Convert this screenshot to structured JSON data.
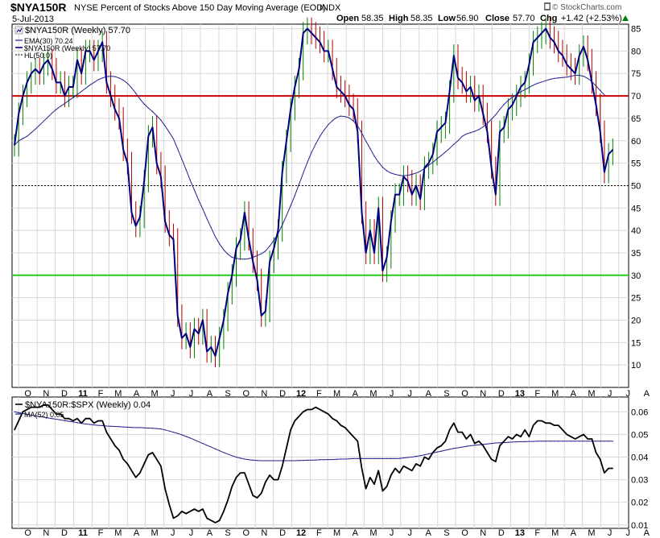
{
  "header": {
    "symbol": "$NYA150R",
    "title": "NYSE Percent of Stocks Above 150 Day Moving Average (EOD)",
    "exchange": "INDX",
    "date": "5-Jul-2013",
    "open_label": "Open",
    "open": "58.35",
    "high_label": "High",
    "high": "58.35",
    "low_label": "Low",
    "low": "56.90",
    "close_label": "Close",
    "close": "57.70",
    "chg_label": "Chg",
    "chg": "+1.42 (+2.53%)",
    "watermark": "© StockCharts.com"
  },
  "colors": {
    "price": "#000080",
    "ema": "#22228c",
    "up_bar": "#008000",
    "down_bar": "#b00000",
    "line70": "#cc0000",
    "line30": "#22cc22",
    "ratio": "#000000",
    "ma52": "#22228c",
    "chg_up": "#008000",
    "grid": "#d8d8d8"
  },
  "chart_data": [
    {
      "type": "line",
      "title": "$NYA150R NYSE Percent of Stocks Above 150 Day Moving Average (EOD)",
      "legend": [
        "$NYA150R (Weekly) 57.70",
        "EMA(30) 70.24",
        "$NYA150R (Weekly) 57.70",
        "HL(50.0)"
      ],
      "legend_placement": "top-left",
      "ylim": [
        5,
        86
      ],
      "yticks": [
        10,
        15,
        20,
        25,
        30,
        35,
        40,
        45,
        50,
        55,
        60,
        65,
        70,
        75,
        80,
        85
      ],
      "x_start": "2010-09-24",
      "x_end": "2013-08-09",
      "x_tick_labels": [
        "O",
        "N",
        "D",
        "11",
        "F",
        "M",
        "A",
        "M",
        "J",
        "J",
        "A",
        "S",
        "O",
        "N",
        "D",
        "12",
        "F",
        "M",
        "A",
        "M",
        "J",
        "J",
        "A",
        "S",
        "O",
        "N",
        "D",
        "13",
        "F",
        "M",
        "A",
        "M",
        "J",
        "J",
        "A"
      ],
      "horizontal_lines": [
        {
          "value": 70,
          "style": "solid-red"
        },
        {
          "value": 50,
          "style": "dashed-black",
          "name": "HL(50.0)"
        },
        {
          "value": 30,
          "style": "solid-green"
        }
      ],
      "series": [
        {
          "name": "$NYA150R (Weekly)",
          "start": "2010-09-24",
          "interval_days": 7,
          "values": [
            59,
            66,
            70,
            73,
            75,
            76,
            75,
            77,
            78,
            76,
            73,
            73,
            70,
            72,
            72,
            78,
            75,
            80,
            80,
            78,
            80,
            82,
            73,
            70,
            67,
            65,
            58,
            55,
            44,
            41,
            43,
            51,
            61,
            63,
            55,
            52,
            42,
            39,
            38,
            21,
            16,
            17,
            14,
            18,
            17,
            20,
            13,
            14,
            12,
            16,
            20,
            26,
            30,
            36,
            38,
            44,
            38,
            33,
            29,
            21,
            22,
            33,
            36,
            40,
            53,
            60,
            67,
            72,
            76,
            84,
            85,
            84,
            83,
            82,
            80,
            80,
            76,
            72,
            71,
            70,
            68,
            67,
            62,
            44,
            35,
            40,
            35,
            45,
            31,
            34,
            42,
            48,
            48,
            52,
            51,
            48,
            50,
            47,
            54,
            55,
            57,
            62,
            63,
            64,
            71,
            79,
            74,
            73,
            71,
            72,
            69,
            70,
            66,
            62,
            54,
            48,
            62,
            63,
            67,
            68,
            70,
            72,
            73,
            77,
            82,
            83,
            84,
            85,
            83,
            82,
            80,
            79,
            77,
            76,
            75,
            79,
            81,
            78,
            73,
            68,
            62,
            53,
            57,
            58
          ]
        },
        {
          "name": "EMA(30)",
          "start": "2010-09-24",
          "interval_days": 7,
          "values": [
            59,
            60,
            60.5,
            61,
            61.8,
            62.6,
            63.5,
            64.4,
            65.3,
            66.2,
            67,
            67.7,
            68.3,
            69,
            69.6,
            70.3,
            71,
            71.7,
            72.4,
            73,
            73.6,
            74,
            74.3,
            74.4,
            74.3,
            74,
            73.5,
            72.8,
            71.8,
            70.6,
            69.3,
            68.2,
            67.3,
            66.5,
            65.6,
            64.6,
            63.3,
            61.9,
            60.4,
            58.2,
            55.9,
            53.6,
            51.2,
            49,
            46.8,
            44.8,
            42.6,
            40.6,
            38.6,
            37,
            35.7,
            34.7,
            34,
            33.8,
            33.6,
            33.6,
            33.7,
            34,
            34.4,
            34.8,
            35.4,
            36.5,
            37.8,
            39.3,
            41.2,
            43.3,
            45.5,
            47.8,
            50.3,
            52.8,
            55.2,
            57.4,
            59.3,
            61,
            62.4,
            63.6,
            64.5,
            65.2,
            65.5,
            65.4,
            65.1,
            64.4,
            63.3,
            61.7,
            59.9,
            58.3,
            56.6,
            55.2,
            54.1,
            53.3,
            52.8,
            52.5,
            52.3,
            52.2,
            52.3,
            52.5,
            52.8,
            53.2,
            53.8,
            54.5,
            55.2,
            56,
            56.7,
            57.5,
            58.3,
            59.2,
            60,
            61,
            61.5,
            61.8,
            62.1,
            62.5,
            63.1,
            63.9,
            64.8,
            65.8,
            67,
            68.1,
            69,
            69.7,
            70.3,
            70.9,
            71.4,
            71.9,
            72.4,
            72.8,
            73.1,
            73.4,
            73.7,
            73.9,
            74,
            74.1,
            74.2,
            74.4,
            74.6,
            74.6,
            74.4,
            73.9,
            73.2,
            72.2,
            71.2,
            70.24
          ]
        }
      ]
    },
    {
      "type": "line",
      "title": "$NYA150R:$SPX (Weekly) 0.04",
      "legend": [
        "$NYA150R:$SPX (Weekly) 0.04",
        "MA(52) 0.05"
      ],
      "legend_placement": "top-left",
      "ylim": [
        0.0085,
        0.0665
      ],
      "yticks": [
        0.01,
        0.02,
        0.03,
        0.04,
        0.05,
        0.06
      ],
      "series": [
        {
          "name": "$NYA150R:$SPX (Weekly)",
          "start": "2010-09-24",
          "interval_days": 7,
          "values": [
            0.052,
            0.056,
            0.06,
            0.061,
            0.062,
            0.062,
            0.062,
            0.063,
            0.063,
            0.061,
            0.059,
            0.059,
            0.057,
            0.057,
            0.056,
            0.057,
            0.055,
            0.057,
            0.057,
            0.055,
            0.056,
            0.056,
            0.051,
            0.048,
            0.045,
            0.043,
            0.039,
            0.037,
            0.034,
            0.031,
            0.033,
            0.037,
            0.041,
            0.042,
            0.039,
            0.036,
            0.026,
            0.019,
            0.013,
            0.014,
            0.016,
            0.015,
            0.016,
            0.017,
            0.016,
            0.017,
            0.013,
            0.012,
            0.011,
            0.012,
            0.016,
            0.021,
            0.027,
            0.031,
            0.033,
            0.033,
            0.028,
            0.023,
            0.022,
            0.024,
            0.029,
            0.032,
            0.03,
            0.03,
            0.036,
            0.044,
            0.052,
            0.056,
            0.058,
            0.06,
            0.061,
            0.061,
            0.062,
            0.061,
            0.06,
            0.059,
            0.057,
            0.056,
            0.054,
            0.053,
            0.051,
            0.049,
            0.047,
            0.035,
            0.026,
            0.031,
            0.028,
            0.034,
            0.025,
            0.027,
            0.032,
            0.035,
            0.033,
            0.036,
            0.035,
            0.034,
            0.037,
            0.036,
            0.04,
            0.039,
            0.042,
            0.044,
            0.045,
            0.047,
            0.052,
            0.055,
            0.051,
            0.051,
            0.048,
            0.05,
            0.046,
            0.047,
            0.045,
            0.042,
            0.039,
            0.038,
            0.045,
            0.047,
            0.049,
            0.048,
            0.05,
            0.049,
            0.052,
            0.049,
            0.054,
            0.056,
            0.056,
            0.055,
            0.055,
            0.054,
            0.054,
            0.052,
            0.05,
            0.049,
            0.048,
            0.049,
            0.05,
            0.048,
            0.048,
            0.042,
            0.039,
            0.033,
            0.035,
            0.035
          ]
        },
        {
          "name": "MA(52)",
          "start": "2010-09-24",
          "interval_days": 7,
          "values": [
            0.06,
            0.0596,
            0.0592,
            0.0589,
            0.0585,
            0.0582,
            0.0579,
            0.0576,
            0.0573,
            0.057,
            0.0567,
            0.0564,
            0.0561,
            0.0558,
            0.0555,
            0.0552,
            0.0549,
            0.0546,
            0.0544,
            0.0542,
            0.054,
            0.0539,
            0.0537,
            0.0536,
            0.0535,
            0.0534,
            0.0533,
            0.0532,
            0.0531,
            0.053,
            0.053,
            0.0529,
            0.0528,
            0.0527,
            0.0526,
            0.0524,
            0.052,
            0.0515,
            0.051,
            0.0504,
            0.0498,
            0.0491,
            0.0484,
            0.0476,
            0.0468,
            0.046,
            0.0452,
            0.0444,
            0.0436,
            0.0428,
            0.042,
            0.0413,
            0.0406,
            0.04,
            0.0395,
            0.0391,
            0.0388,
            0.0386,
            0.0385,
            0.0384,
            0.0384,
            0.0384,
            0.0384,
            0.0384,
            0.0384,
            0.0384,
            0.0384,
            0.0384,
            0.0385,
            0.0385,
            0.0386,
            0.0386,
            0.0387,
            0.0388,
            0.0388,
            0.0389,
            0.0389,
            0.039,
            0.0391,
            0.0391,
            0.0392,
            0.0393,
            0.0393,
            0.0393,
            0.0393,
            0.0393,
            0.0393,
            0.0393,
            0.0393,
            0.0393,
            0.0393,
            0.0393,
            0.0394,
            0.0396,
            0.0398,
            0.04,
            0.0403,
            0.0406,
            0.041,
            0.0414,
            0.0418,
            0.0422,
            0.0426,
            0.043,
            0.0434,
            0.0438,
            0.0441,
            0.0444,
            0.0447,
            0.045,
            0.0452,
            0.0454,
            0.0456,
            0.0458,
            0.046,
            0.0462,
            0.0463,
            0.0464,
            0.0465,
            0.0466,
            0.0467,
            0.0468,
            0.0468,
            0.0469,
            0.0469,
            0.047,
            0.047,
            0.047,
            0.047,
            0.047,
            0.047,
            0.047,
            0.047,
            0.047,
            0.047,
            0.047,
            0.047,
            0.047,
            0.047,
            0.047,
            0.047,
            0.047,
            0.047,
            0.047
          ]
        }
      ]
    }
  ]
}
